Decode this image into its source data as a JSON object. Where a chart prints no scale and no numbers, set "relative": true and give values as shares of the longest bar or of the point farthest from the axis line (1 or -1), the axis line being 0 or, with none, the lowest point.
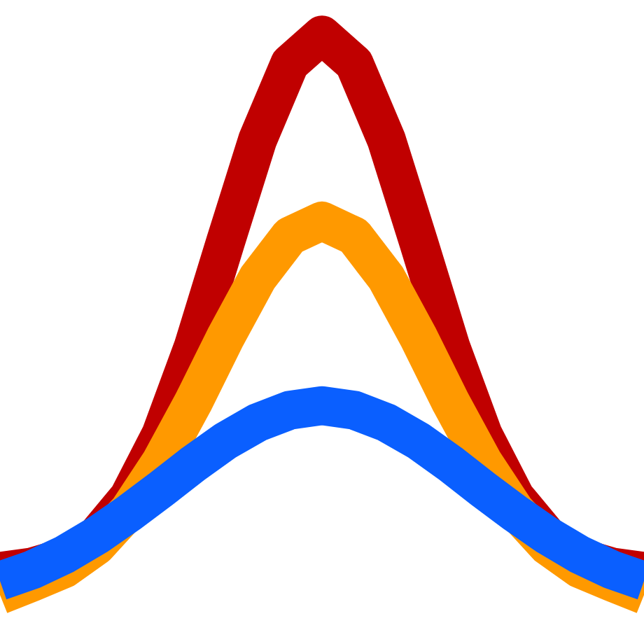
{
  "chart_data": {
    "type": "line",
    "relative": true,
    "categories": [
      null,
      null,
      null,
      null,
      null,
      null,
      null,
      null,
      null,
      null,
      null,
      null,
      null,
      null,
      null,
      null,
      null,
      null,
      null,
      null,
      null
    ],
    "series": [
      {
        "color": "#c00000",
        "values": [
          0.042,
          0.05,
          0.067,
          0.106,
          0.175,
          0.287,
          0.443,
          0.63,
          0.813,
          0.949,
          1.0,
          0.949,
          0.813,
          0.63,
          0.443,
          0.287,
          0.175,
          0.106,
          0.067,
          0.05,
          0.042
        ]
      },
      {
        "color": "#ff9900",
        "values": [
          0.0,
          0.023,
          0.047,
          0.088,
          0.151,
          0.238,
          0.344,
          0.46,
          0.566,
          0.641,
          0.668,
          0.641,
          0.566,
          0.46,
          0.344,
          0.238,
          0.151,
          0.088,
          0.047,
          0.023,
          0.0
        ]
      },
      {
        "color": "#0a5fff",
        "values": [
          0.025,
          0.045,
          0.072,
          0.106,
          0.146,
          0.189,
          0.234,
          0.275,
          0.308,
          0.33,
          0.338,
          0.33,
          0.308,
          0.275,
          0.234,
          0.189,
          0.146,
          0.106,
          0.072,
          0.045,
          0.025
        ]
      }
    ],
    "marker": "none",
    "line_style": "solid"
  }
}
